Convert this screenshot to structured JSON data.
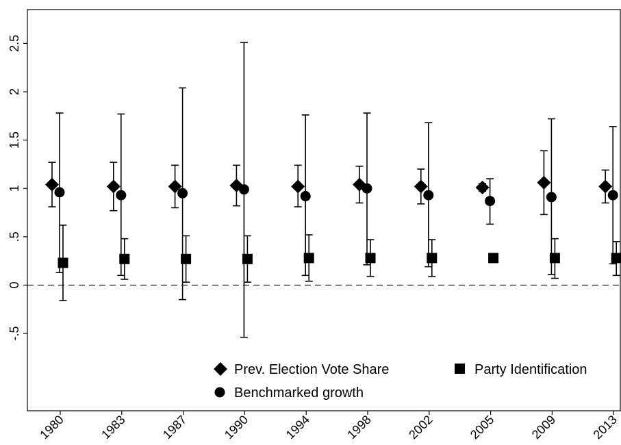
{
  "chart_data": {
    "type": "scatter",
    "title": "",
    "xlabel": "",
    "ylabel": "",
    "categories": [
      "1980",
      "1983",
      "1987",
      "1990",
      "1994",
      "1998",
      "2002",
      "2005",
      "2009",
      "2013"
    ],
    "y_ticks": [
      -0.5,
      0,
      0.5,
      1,
      1.5,
      2,
      2.5
    ],
    "y_tick_labels": [
      "-.5",
      "0",
      ".5",
      "1",
      "1.5",
      "2",
      "2.5"
    ],
    "ylim": [
      -1.3,
      2.85
    ],
    "reference_line": 0,
    "grid": false,
    "legend_position": "bottom-inside",
    "series": [
      {
        "name": "Prev. Election Vote Share",
        "marker": "diamond",
        "values": [
          1.04,
          1.02,
          1.02,
          1.03,
          1.02,
          1.04,
          1.02,
          1.01,
          1.06,
          1.02
        ],
        "lower": [
          0.81,
          0.77,
          0.8,
          0.82,
          0.81,
          0.85,
          0.84,
          0.97,
          0.73,
          0.85
        ],
        "upper": [
          1.27,
          1.27,
          1.24,
          1.24,
          1.24,
          1.23,
          1.2,
          1.05,
          1.39,
          1.19
        ]
      },
      {
        "name": "Benchmarked growth",
        "marker": "circle",
        "values": [
          0.96,
          0.93,
          0.95,
          0.99,
          0.92,
          1.0,
          0.93,
          0.87,
          0.91,
          0.93
        ],
        "lower": [
          0.13,
          0.1,
          -0.15,
          -0.54,
          0.1,
          0.21,
          0.19,
          0.63,
          0.11,
          0.22
        ],
        "upper": [
          1.78,
          1.77,
          2.04,
          2.51,
          1.76,
          1.78,
          1.68,
          1.1,
          1.72,
          1.64
        ]
      },
      {
        "name": "Party Identification",
        "marker": "square",
        "values": [
          0.23,
          0.27,
          0.27,
          0.27,
          0.28,
          0.28,
          0.28,
          0.28,
          0.28,
          0.28
        ],
        "lower": [
          -0.16,
          0.06,
          0.03,
          0.03,
          0.04,
          0.09,
          0.09,
          0.25,
          0.07,
          0.1
        ],
        "upper": [
          0.62,
          0.48,
          0.51,
          0.51,
          0.52,
          0.47,
          0.47,
          0.31,
          0.48,
          0.45
        ]
      }
    ]
  }
}
